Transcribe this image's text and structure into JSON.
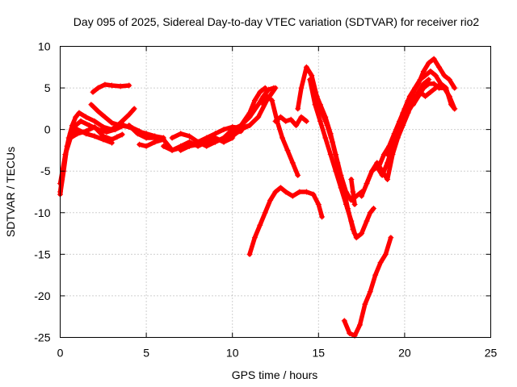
{
  "chart_data": {
    "type": "scatter",
    "title": "Day 095 of 2025, Sidereal Day-to-day VTEC variation (SDTVAR) for receiver rio2",
    "xlabel": "GPS time / hours",
    "ylabel": "SDTVAR / TECUs",
    "xlim": [
      0,
      25
    ],
    "ylim": [
      -25,
      10
    ],
    "xticks": [
      0,
      5,
      10,
      15,
      20,
      25
    ],
    "yticks": [
      -25,
      -20,
      -15,
      -10,
      -5,
      0,
      5,
      10
    ],
    "xtick_labels": [
      "0",
      "5",
      "10",
      "15",
      "20",
      "25"
    ],
    "ytick_labels": [
      "-25",
      "-20",
      "-15",
      "-10",
      "-5",
      "0",
      "5",
      "10"
    ],
    "grid": true,
    "marker": "plus",
    "color": "#ff0000",
    "series": [
      {
        "x": [
          0.0,
          0.1,
          0.3,
          0.5,
          0.7,
          0.9,
          1.1
        ],
        "y": [
          -7.5,
          -6.0,
          -3.0,
          -1.0,
          0.5,
          1.5,
          2.0
        ]
      },
      {
        "x": [
          1.1,
          1.5,
          2.0,
          2.5,
          3.0,
          3.5,
          4.0,
          4.3
        ],
        "y": [
          2.0,
          1.5,
          1.0,
          0.3,
          0.0,
          0.8,
          1.8,
          2.5
        ]
      },
      {
        "x": [
          0.0,
          0.2,
          0.4,
          0.6,
          0.9,
          1.2
        ],
        "y": [
          -7.8,
          -5.0,
          -2.0,
          -0.5,
          0.5,
          1.0
        ]
      },
      {
        "x": [
          1.2,
          1.7,
          2.2,
          2.7,
          3.2,
          3.7,
          4.2,
          4.6
        ],
        "y": [
          1.0,
          0.5,
          0.0,
          -0.3,
          0.0,
          0.5,
          0.2,
          -0.2
        ]
      },
      {
        "x": [
          0.0,
          0.3,
          0.6,
          1.0,
          1.5,
          2.0,
          2.5,
          3.0,
          3.3,
          3.6
        ],
        "y": [
          -6.5,
          -3.0,
          -1.0,
          -0.5,
          -0.2,
          0.3,
          -0.8,
          -1.2,
          -0.9,
          -0.6
        ]
      },
      {
        "x": [
          0.5,
          1.0,
          1.5,
          2.0,
          2.5,
          3.0
        ],
        "y": [
          -1.0,
          0.0,
          -0.5,
          -0.8,
          -1.2,
          -1.6
        ]
      },
      {
        "x": [
          1.8,
          2.2,
          2.6,
          3.0,
          3.5,
          4.0,
          4.5,
          5.0,
          5.5,
          6.0
        ],
        "y": [
          3.0,
          2.2,
          1.5,
          0.8,
          0.5,
          0.3,
          -0.2,
          -0.5,
          -0.8,
          -1.0
        ]
      },
      {
        "x": [
          1.9,
          2.2,
          2.6,
          3.0,
          3.5,
          4.0
        ],
        "y": [
          4.5,
          5.0,
          5.4,
          5.3,
          5.2,
          5.3
        ]
      },
      {
        "x": [
          4.6,
          5.0,
          5.5,
          6.0
        ],
        "y": [
          -1.8,
          -2.0,
          -1.5,
          -1.2
        ]
      },
      {
        "x": [
          4.0,
          4.5,
          5.0,
          5.5,
          6.0,
          6.5,
          7.0,
          7.5,
          8.0,
          8.5,
          9.0,
          9.5,
          10.0
        ],
        "y": [
          0.5,
          -0.5,
          -1.0,
          -1.0,
          -1.2,
          -2.5,
          -2.0,
          -1.5,
          -2.0,
          -1.5,
          -1.0,
          -1.5,
          -1.0
        ]
      },
      {
        "x": [
          6.0,
          6.5,
          7.0,
          7.5,
          8.0,
          8.5,
          9.0,
          9.5,
          10.0,
          10.5,
          11.0
        ],
        "y": [
          -2.0,
          -2.5,
          -2.2,
          -2.0,
          -1.5,
          -1.0,
          -0.5,
          0.0,
          0.3,
          0.2,
          0.5
        ]
      },
      {
        "x": [
          6.5,
          7.0,
          7.5,
          8.0,
          8.5,
          9.0,
          9.5,
          10.0,
          10.5
        ],
        "y": [
          -1.0,
          -0.5,
          -0.8,
          -1.5,
          -2.0,
          -1.5,
          -1.0,
          -0.5,
          -0.2
        ]
      },
      {
        "x": [
          7.0,
          7.5,
          8.0,
          8.5,
          9.0,
          9.5,
          10.0,
          10.5,
          11.0,
          11.5,
          12.0,
          12.5
        ],
        "y": [
          -2.5,
          -2.0,
          -1.8,
          -1.5,
          -1.0,
          -1.5,
          -0.8,
          0.0,
          0.5,
          1.5,
          3.5,
          5.0
        ]
      },
      {
        "x": [
          9.0,
          9.5,
          10.0,
          10.5,
          11.0,
          11.5,
          11.8,
          12.1,
          12.4
        ],
        "y": [
          -1.5,
          -1.0,
          0.0,
          0.5,
          1.5,
          3.0,
          4.0,
          4.8,
          5.0
        ]
      },
      {
        "x": [
          10.0,
          10.5,
          11.0,
          11.3,
          11.6,
          11.9
        ],
        "y": [
          -0.5,
          0.5,
          2.0,
          3.5,
          4.5,
          5.0
        ]
      },
      {
        "x": [
          11.8,
          12.0,
          12.3,
          12.6,
          12.9,
          13.2,
          13.5,
          13.8
        ],
        "y": [
          3.0,
          4.0,
          3.5,
          1.0,
          -1.0,
          -2.5,
          -4.0,
          -5.5
        ]
      },
      {
        "x": [
          12.5,
          12.8,
          13.1,
          13.4,
          13.7,
          14.0,
          14.3
        ],
        "y": [
          1.0,
          1.5,
          1.0,
          1.2,
          0.5,
          1.5,
          1.0
        ]
      },
      {
        "x": [
          11.0,
          11.3,
          11.6,
          11.9,
          12.2,
          12.5,
          12.8,
          13.1,
          13.5,
          13.9,
          14.3,
          14.7,
          15.0,
          15.2
        ],
        "y": [
          -15.0,
          -13.0,
          -11.5,
          -10.0,
          -8.5,
          -7.5,
          -7.0,
          -7.5,
          -8.0,
          -7.5,
          -7.5,
          -7.8,
          -9.0,
          -10.5
        ]
      },
      {
        "x": [
          13.8,
          14.0,
          14.3,
          14.6,
          14.9,
          15.2,
          15.5,
          15.8,
          16.1,
          16.4,
          16.7,
          17.0,
          17.2,
          17.5,
          17.8,
          18.0,
          18.2
        ],
        "y": [
          2.5,
          5.0,
          7.5,
          6.5,
          4.0,
          2.0,
          0.5,
          -1.5,
          -4.0,
          -6.5,
          -9.5,
          -12.0,
          -13.0,
          -12.5,
          -11.0,
          -10.0,
          -9.5
        ]
      },
      {
        "x": [
          14.5,
          14.8,
          15.1,
          15.4,
          15.7,
          16.0,
          16.3,
          16.6,
          16.9,
          17.1
        ],
        "y": [
          6.0,
          3.0,
          1.0,
          -1.0,
          -3.0,
          -5.0,
          -7.0,
          -9.0,
          -11.0,
          -12.5
        ]
      },
      {
        "x": [
          14.8,
          15.1,
          15.4,
          15.7,
          16.0,
          16.3,
          16.6,
          16.9,
          17.2,
          17.5
        ],
        "y": [
          4.5,
          3.0,
          1.5,
          -0.5,
          -3.0,
          -5.5,
          -7.5,
          -8.5,
          -8.0,
          -7.5
        ]
      },
      {
        "x": [
          16.5,
          16.8,
          17.1,
          17.4,
          17.7,
          18.0,
          18.3,
          18.6,
          18.9,
          19.2
        ],
        "y": [
          -23.0,
          -24.5,
          -24.8,
          -23.5,
          -21.0,
          -19.5,
          -17.5,
          -16.0,
          -15.0,
          -13.0
        ]
      },
      {
        "x": [
          16.9,
          17.0,
          17.1
        ],
        "y": [
          -6.0,
          -7.5,
          -9.0
        ]
      },
      {
        "x": [
          17.5,
          17.8,
          18.1,
          18.4,
          18.7,
          19.0,
          19.3,
          19.6,
          19.9,
          20.2
        ],
        "y": [
          -8.0,
          -6.5,
          -5.0,
          -4.5,
          -5.5,
          -4.0,
          -2.0,
          0.0,
          2.0,
          3.5
        ]
      },
      {
        "x": [
          17.8,
          18.1,
          18.4,
          18.7,
          19.0,
          19.3,
          19.6,
          19.9,
          20.2,
          20.5,
          20.8,
          21.1,
          21.4
        ],
        "y": [
          -6.5,
          -5.0,
          -4.0,
          -5.0,
          -6.0,
          -3.0,
          -1.0,
          0.5,
          2.0,
          3.5,
          4.5,
          5.5,
          6.0
        ]
      },
      {
        "x": [
          18.5,
          18.8,
          19.1,
          19.4,
          19.7,
          20.0,
          20.3,
          20.6,
          20.9,
          21.2,
          21.5,
          21.8,
          22.1,
          22.4
        ],
        "y": [
          -4.5,
          -3.0,
          -2.0,
          -0.5,
          1.0,
          2.5,
          4.0,
          5.0,
          6.0,
          6.5,
          7.0,
          6.5,
          5.5,
          5.0
        ]
      },
      {
        "x": [
          19.0,
          19.3,
          19.6,
          19.9,
          20.2,
          20.5,
          20.8,
          21.1,
          21.4,
          21.7,
          22.0,
          22.3,
          22.6,
          22.9
        ],
        "y": [
          -3.0,
          -1.5,
          0.0,
          1.5,
          3.0,
          4.5,
          5.5,
          7.0,
          8.0,
          8.5,
          7.5,
          6.5,
          6.0,
          5.0
        ]
      },
      {
        "x": [
          20.0,
          20.3,
          20.6,
          20.9,
          21.2,
          21.5,
          21.8,
          22.1,
          22.4,
          22.7,
          22.9
        ],
        "y": [
          1.5,
          2.5,
          3.5,
          4.5,
          4.0,
          4.5,
          5.0,
          5.5,
          5.0,
          3.0,
          2.5
        ]
      },
      {
        "x": [
          20.5,
          20.8,
          21.1,
          21.4,
          21.7,
          22.0,
          22.3,
          22.6,
          22.9
        ],
        "y": [
          3.0,
          4.0,
          5.0,
          5.5,
          5.5,
          5.0,
          5.0,
          4.0,
          2.5
        ]
      }
    ]
  }
}
